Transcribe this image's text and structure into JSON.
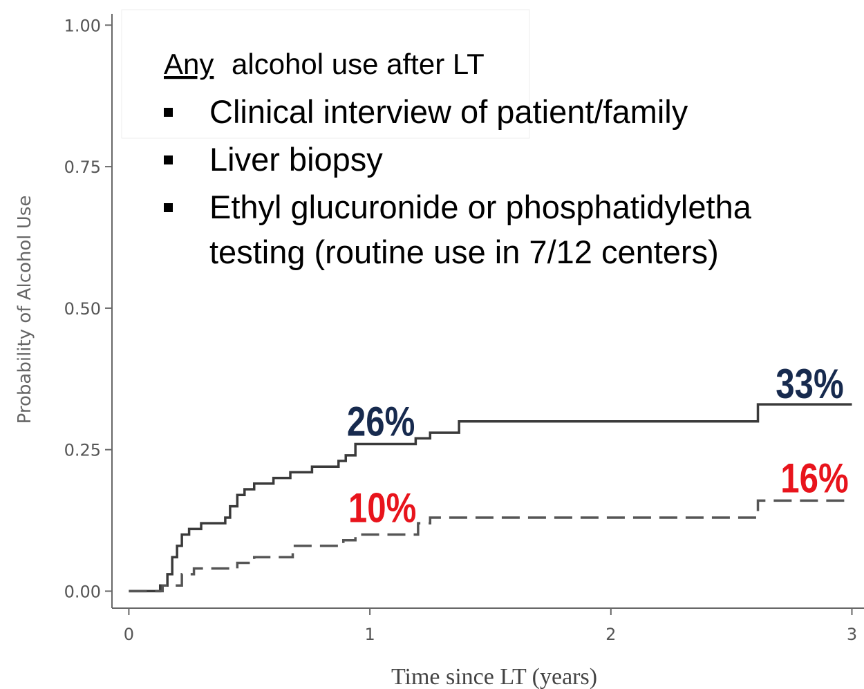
{
  "chart_data": {
    "type": "step",
    "ylabel": "Probability of Alcohol Use",
    "xlabel": "Time since LT (years)",
    "xlim": [
      -0.07,
      3.1
    ],
    "ylim": [
      -0.03,
      1.02
    ],
    "xticks": [
      0,
      1,
      2,
      3
    ],
    "yticks": [
      {
        "value": 0,
        "label": "0.00"
      },
      {
        "value": 0.25,
        "label": "0.25"
      },
      {
        "value": 0.5,
        "label": "0.50"
      },
      {
        "value": 0.75,
        "label": "0.75"
      },
      {
        "value": 1,
        "label": "1.00"
      }
    ],
    "series": [
      {
        "color": "#3a3a3a",
        "dashed": false,
        "x": [
          0,
          0.13,
          0.16,
          0.18,
          0.2,
          0.22,
          0.25,
          0.3,
          0.4,
          0.42,
          0.45,
          0.48,
          0.52,
          0.6,
          0.67,
          0.76,
          0.87,
          0.9,
          0.94,
          1.19,
          1.25,
          1.37,
          2.61,
          3.0
        ],
        "values": [
          0,
          0.01,
          0.03,
          0.06,
          0.08,
          0.1,
          0.11,
          0.12,
          0.13,
          0.15,
          0.17,
          0.18,
          0.19,
          0.2,
          0.21,
          0.22,
          0.23,
          0.24,
          0.26,
          0.27,
          0.28,
          0.3,
          0.33,
          0.33
        ]
      },
      {
        "color": "#555555",
        "dashed": true,
        "x": [
          0,
          0.14,
          0.22,
          0.27,
          0.45,
          0.52,
          0.68,
          0.89,
          0.94,
          1.2,
          1.25,
          2.61,
          3.0
        ],
        "values": [
          0,
          0.01,
          0.03,
          0.04,
          0.05,
          0.06,
          0.08,
          0.09,
          0.1,
          0.12,
          0.13,
          0.16,
          0.16
        ]
      }
    ],
    "annotations": [
      {
        "text": "26%",
        "x": 1,
        "y": 0.26,
        "color": "#172a4e"
      },
      {
        "text": "10%",
        "x": 1,
        "y": 0.1,
        "color": "#e8141c"
      },
      {
        "text": "33%",
        "x": 3,
        "y": 0.33,
        "color": "#172a4e"
      },
      {
        "text": "16%",
        "x": 3,
        "y": 0.16,
        "color": "#e8141c"
      }
    ]
  },
  "overlay": {
    "heading_link": "Any",
    "heading": "alcohol use after LT",
    "bullets": [
      [
        "Clinical interview of patient/family"
      ],
      [
        "Liver biopsy"
      ],
      [
        "Ethyl glucuronide or phosphatidyletha",
        "testing (routine use in 7/12 centers)"
      ]
    ]
  }
}
